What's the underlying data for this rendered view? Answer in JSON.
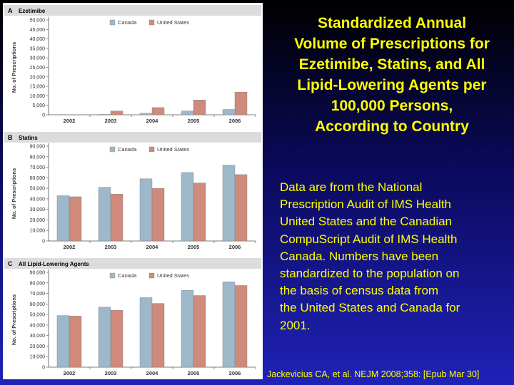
{
  "slide": {
    "title": "Standardized Annual\nVolume of Prescriptions for\nEzetimibe, Statins, and All\nLipid-Lowering Agents per\n100,000 Persons,\nAccording to Country",
    "body": "Data are from the National\nPrescription Audit of IMS Health\nUnited States and the Canadian\nCompuScript Audit of IMS Health\nCanada. Numbers have been\nstandardized to the population on\nthe basis of census data from\nthe United States and Canada for\n2001.",
    "citation": "Jackevicius CA, et al. NEJM 2008;358: [Epub Mar 30]"
  },
  "colors": {
    "canada": "#9db8c9",
    "united_states": "#cf8a7c",
    "panel_header": "#dcdcdc",
    "background_top": "#000000",
    "background_bottom": "#1f22b8",
    "text": "#ffff00"
  },
  "chart_data": [
    {
      "type": "bar",
      "panel_letter": "A",
      "title": "Ezetimibe",
      "ylabel": "No. of Prescriptions",
      "xlabel": "",
      "categories": [
        "2002",
        "2003",
        "2004",
        "2005",
        "2006"
      ],
      "series": [
        {
          "name": "Canada",
          "values": [
            0,
            200,
            800,
            2000,
            2800
          ]
        },
        {
          "name": "United States",
          "values": [
            0,
            2000,
            3800,
            7800,
            12000
          ]
        }
      ],
      "ylim": [
        0,
        50000
      ],
      "yticks": [
        0,
        5000,
        10000,
        15000,
        20000,
        25000,
        30000,
        35000,
        40000,
        45000,
        50000
      ],
      "ytick_labels": [
        "0",
        "5,000",
        "10,000",
        "15,000",
        "20,000",
        "25,000",
        "30,000",
        "35,000",
        "40,000",
        "45,000",
        "50,000"
      ],
      "grid": false,
      "legend_position": "top-center"
    },
    {
      "type": "bar",
      "panel_letter": "B",
      "title": "Statins",
      "ylabel": "No. of Prescriptions",
      "xlabel": "",
      "categories": [
        "2002",
        "2003",
        "2004",
        "2005",
        "2006"
      ],
      "series": [
        {
          "name": "Canada",
          "values": [
            43000,
            51000,
            59000,
            65000,
            72000
          ]
        },
        {
          "name": "United States",
          "values": [
            42000,
            44500,
            50000,
            55000,
            63000
          ]
        }
      ],
      "ylim": [
        0,
        90000
      ],
      "yticks": [
        0,
        10000,
        20000,
        30000,
        40000,
        50000,
        60000,
        70000,
        80000,
        90000
      ],
      "ytick_labels": [
        "0",
        "10,000",
        "20,000",
        "30,000",
        "40,000",
        "50,000",
        "60,000",
        "70,000",
        "80,000",
        "90,000"
      ],
      "grid": false,
      "legend_position": "top-center"
    },
    {
      "type": "bar",
      "panel_letter": "C",
      "title": "All Lipid-Lowering Agents",
      "ylabel": "No. of Prescriptions",
      "xlabel": "",
      "categories": [
        "2002",
        "2003",
        "2004",
        "2005",
        "2006"
      ],
      "series": [
        {
          "name": "Canada",
          "values": [
            49000,
            57000,
            66000,
            73000,
            81000
          ]
        },
        {
          "name": "United States",
          "values": [
            48500,
            54000,
            60500,
            68000,
            77500
          ]
        }
      ],
      "ylim": [
        0,
        90000
      ],
      "yticks": [
        0,
        10000,
        20000,
        30000,
        40000,
        50000,
        60000,
        70000,
        80000,
        90000
      ],
      "ytick_labels": [
        "0",
        "10,000",
        "20,000",
        "30,000",
        "40,000",
        "50,000",
        "60,000",
        "70,000",
        "80,000",
        "90,000"
      ],
      "grid": false,
      "legend_position": "top-center"
    }
  ]
}
